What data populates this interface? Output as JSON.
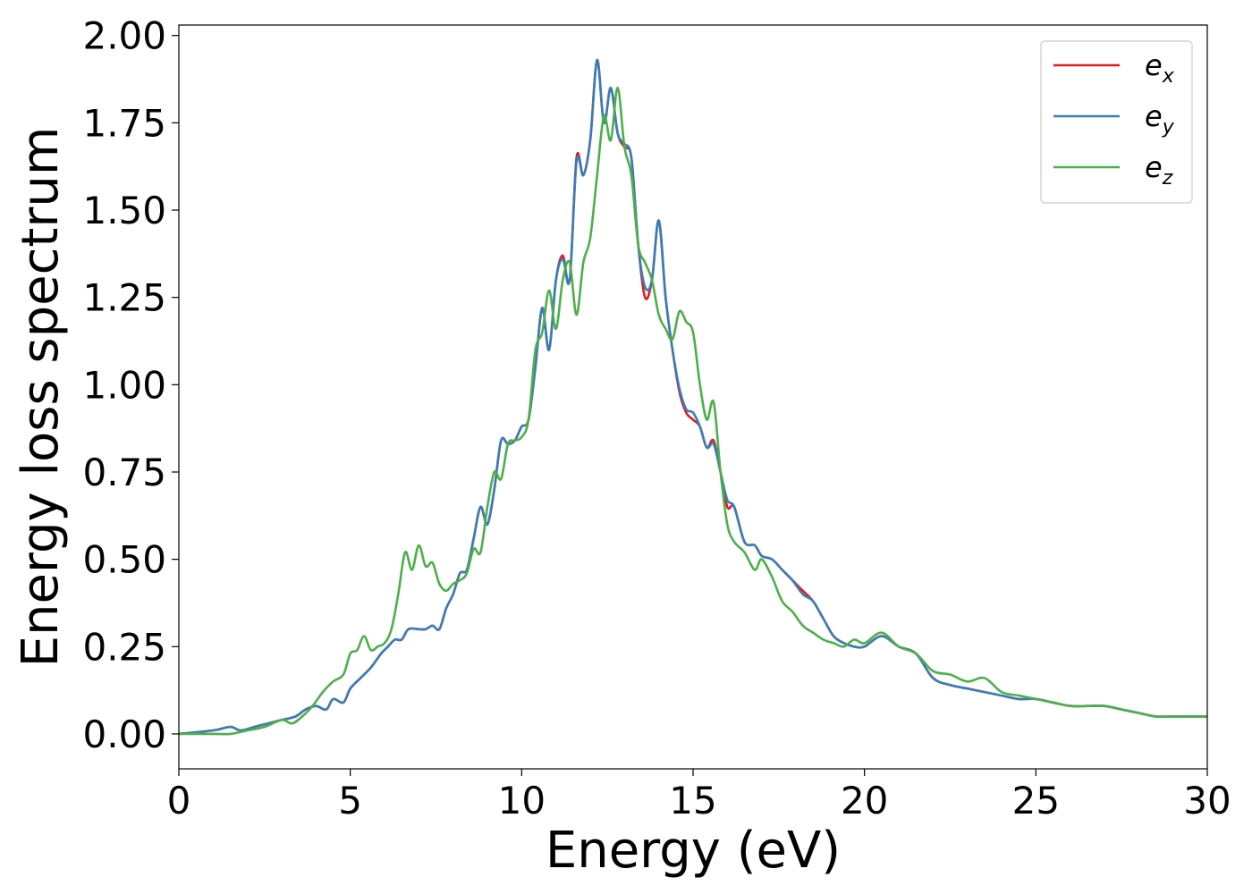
{
  "chart_data": {
    "type": "line",
    "title": "",
    "xlabel": "Energy (eV)",
    "ylabel": "Energy loss spectrum",
    "xlim": [
      0,
      30
    ],
    "ylim": [
      -0.1,
      2.03
    ],
    "xticks": [
      0,
      5,
      10,
      15,
      20,
      25,
      30
    ],
    "xtick_labels": [
      "0",
      "5",
      "10",
      "15",
      "20",
      "25",
      "30"
    ],
    "yticks": [
      0,
      0.25,
      0.5,
      0.75,
      1.0,
      1.25,
      1.5,
      1.75,
      2.0
    ],
    "ytick_labels": [
      "0.00",
      "0.25",
      "0.50",
      "0.75",
      "1.00",
      "1.25",
      "1.50",
      "1.75",
      "2.00"
    ],
    "grid": false,
    "legend_position": "top-right",
    "series": [
      {
        "name": "e_x",
        "label_base": "e",
        "label_sub": "x",
        "color": "#e41a1c",
        "x": [
          0,
          1,
          1.5,
          1.8,
          2.2,
          2.6,
          3.0,
          3.4,
          3.7,
          4.0,
          4.3,
          4.5,
          4.8,
          5.0,
          5.3,
          5.6,
          5.9,
          6.1,
          6.3,
          6.5,
          6.7,
          7.0,
          7.2,
          7.4,
          7.6,
          7.8,
          8.0,
          8.2,
          8.4,
          8.6,
          8.8,
          9.0,
          9.2,
          9.4,
          9.6,
          9.8,
          10.0,
          10.2,
          10.4,
          10.6,
          10.8,
          11.0,
          11.2,
          11.4,
          11.6,
          11.8,
          12.0,
          12.2,
          12.4,
          12.6,
          12.8,
          13.0,
          13.2,
          13.4,
          13.6,
          13.8,
          14.0,
          14.2,
          14.4,
          14.6,
          14.8,
          15.0,
          15.2,
          15.4,
          15.6,
          15.8,
          16.0,
          16.2,
          16.5,
          16.8,
          17.0,
          17.3,
          17.6,
          17.9,
          18.2,
          18.5,
          18.8,
          19.1,
          19.4,
          19.7,
          20.0,
          20.5,
          21.0,
          21.5,
          22.0,
          22.5,
          23.0,
          23.5,
          24.0,
          24.5,
          25.0,
          25.5,
          26.0,
          26.5,
          27.0,
          27.5,
          28.0,
          28.5,
          29.0,
          29.5,
          30.0
        ],
        "y": [
          0,
          0.01,
          0.02,
          0.01,
          0.02,
          0.03,
          0.04,
          0.05,
          0.07,
          0.08,
          0.07,
          0.1,
          0.09,
          0.13,
          0.16,
          0.19,
          0.23,
          0.25,
          0.27,
          0.27,
          0.3,
          0.3,
          0.3,
          0.31,
          0.3,
          0.36,
          0.4,
          0.46,
          0.47,
          0.56,
          0.65,
          0.6,
          0.7,
          0.84,
          0.83,
          0.84,
          0.88,
          0.9,
          1.05,
          1.22,
          1.1,
          1.3,
          1.37,
          1.3,
          1.65,
          1.6,
          1.7,
          1.93,
          1.75,
          1.85,
          1.72,
          1.68,
          1.65,
          1.4,
          1.25,
          1.3,
          1.47,
          1.25,
          1.1,
          0.98,
          0.92,
          0.9,
          0.88,
          0.82,
          0.84,
          0.75,
          0.65,
          0.65,
          0.55,
          0.54,
          0.51,
          0.5,
          0.47,
          0.44,
          0.41,
          0.38,
          0.33,
          0.28,
          0.26,
          0.25,
          0.25,
          0.28,
          0.25,
          0.23,
          0.16,
          0.14,
          0.13,
          0.12,
          0.11,
          0.1,
          0.1,
          0.09,
          0.08,
          0.08,
          0.08,
          0.07,
          0.06,
          0.05,
          0.05,
          0.05,
          0.05
        ]
      },
      {
        "name": "e_y",
        "label_base": "e",
        "label_sub": "y",
        "color": "#377eb8",
        "x": [
          0,
          1,
          1.5,
          1.8,
          2.2,
          2.6,
          3.0,
          3.4,
          3.7,
          4.0,
          4.3,
          4.5,
          4.8,
          5.0,
          5.3,
          5.6,
          5.9,
          6.1,
          6.3,
          6.5,
          6.7,
          7.0,
          7.2,
          7.4,
          7.6,
          7.8,
          8.0,
          8.2,
          8.4,
          8.6,
          8.8,
          9.0,
          9.2,
          9.4,
          9.6,
          9.8,
          10.0,
          10.2,
          10.4,
          10.6,
          10.8,
          11.0,
          11.2,
          11.4,
          11.6,
          11.8,
          12.0,
          12.2,
          12.4,
          12.6,
          12.8,
          13.0,
          13.2,
          13.4,
          13.6,
          13.8,
          14.0,
          14.2,
          14.4,
          14.6,
          14.8,
          15.0,
          15.2,
          15.4,
          15.6,
          15.8,
          16.0,
          16.2,
          16.5,
          16.8,
          17.0,
          17.3,
          17.6,
          17.9,
          18.2,
          18.5,
          18.8,
          19.1,
          19.4,
          19.7,
          20.0,
          20.5,
          21.0,
          21.5,
          22.0,
          22.5,
          23.0,
          23.5,
          24.0,
          24.5,
          25.0,
          25.5,
          26.0,
          26.5,
          27.0,
          27.5,
          28.0,
          28.5,
          29.0,
          29.5,
          30.0
        ],
        "y": [
          0,
          0.01,
          0.02,
          0.01,
          0.02,
          0.03,
          0.04,
          0.05,
          0.07,
          0.08,
          0.07,
          0.1,
          0.09,
          0.13,
          0.16,
          0.19,
          0.23,
          0.25,
          0.27,
          0.27,
          0.3,
          0.3,
          0.3,
          0.31,
          0.3,
          0.36,
          0.4,
          0.46,
          0.47,
          0.56,
          0.65,
          0.6,
          0.7,
          0.84,
          0.83,
          0.84,
          0.88,
          0.9,
          1.05,
          1.22,
          1.1,
          1.3,
          1.36,
          1.3,
          1.64,
          1.6,
          1.7,
          1.93,
          1.75,
          1.85,
          1.72,
          1.69,
          1.65,
          1.4,
          1.28,
          1.3,
          1.47,
          1.25,
          1.1,
          0.99,
          0.93,
          0.92,
          0.88,
          0.82,
          0.83,
          0.75,
          0.67,
          0.65,
          0.55,
          0.54,
          0.51,
          0.5,
          0.47,
          0.44,
          0.4,
          0.38,
          0.33,
          0.28,
          0.26,
          0.25,
          0.25,
          0.28,
          0.25,
          0.23,
          0.16,
          0.14,
          0.13,
          0.12,
          0.11,
          0.1,
          0.1,
          0.09,
          0.08,
          0.08,
          0.08,
          0.07,
          0.06,
          0.05,
          0.05,
          0.05,
          0.05
        ]
      },
      {
        "name": "e_z",
        "label_base": "e",
        "label_sub": "z",
        "color": "#4daf4a",
        "x": [
          0,
          1,
          1.5,
          2.0,
          2.5,
          3.0,
          3.3,
          3.6,
          3.9,
          4.2,
          4.5,
          4.8,
          5.0,
          5.2,
          5.4,
          5.6,
          5.8,
          6.0,
          6.2,
          6.4,
          6.6,
          6.8,
          7.0,
          7.2,
          7.4,
          7.6,
          7.8,
          8.0,
          8.2,
          8.4,
          8.6,
          8.8,
          9.0,
          9.2,
          9.4,
          9.6,
          9.8,
          10.0,
          10.2,
          10.4,
          10.6,
          10.8,
          11.0,
          11.2,
          11.4,
          11.6,
          11.8,
          12.0,
          12.2,
          12.4,
          12.6,
          12.8,
          13.0,
          13.2,
          13.4,
          13.6,
          13.8,
          14.0,
          14.2,
          14.4,
          14.6,
          14.8,
          15.0,
          15.2,
          15.4,
          15.6,
          15.8,
          16.0,
          16.2,
          16.5,
          16.8,
          17.0,
          17.3,
          17.6,
          17.9,
          18.2,
          18.5,
          18.8,
          19.1,
          19.4,
          19.7,
          20.0,
          20.5,
          21.0,
          21.5,
          22.0,
          22.5,
          23.0,
          23.5,
          24.0,
          24.5,
          25.0,
          25.5,
          26.0,
          26.5,
          27.0,
          27.5,
          28.0,
          28.5,
          29.0,
          29.5,
          30.0
        ],
        "y": [
          0,
          0.0,
          0.0,
          0.01,
          0.02,
          0.04,
          0.03,
          0.05,
          0.08,
          0.12,
          0.15,
          0.17,
          0.23,
          0.24,
          0.28,
          0.24,
          0.25,
          0.26,
          0.3,
          0.4,
          0.52,
          0.47,
          0.54,
          0.48,
          0.49,
          0.43,
          0.41,
          0.43,
          0.44,
          0.46,
          0.53,
          0.52,
          0.65,
          0.75,
          0.73,
          0.83,
          0.84,
          0.85,
          0.9,
          1.1,
          1.15,
          1.27,
          1.16,
          1.3,
          1.35,
          1.2,
          1.35,
          1.42,
          1.6,
          1.77,
          1.7,
          1.85,
          1.68,
          1.6,
          1.4,
          1.35,
          1.3,
          1.2,
          1.16,
          1.13,
          1.21,
          1.18,
          1.15,
          1.0,
          0.9,
          0.95,
          0.75,
          0.6,
          0.55,
          0.52,
          0.47,
          0.5,
          0.45,
          0.38,
          0.35,
          0.31,
          0.29,
          0.27,
          0.26,
          0.25,
          0.27,
          0.26,
          0.29,
          0.25,
          0.23,
          0.18,
          0.17,
          0.15,
          0.16,
          0.12,
          0.11,
          0.1,
          0.09,
          0.08,
          0.08,
          0.08,
          0.07,
          0.06,
          0.05,
          0.05,
          0.05,
          0.05
        ]
      }
    ]
  }
}
